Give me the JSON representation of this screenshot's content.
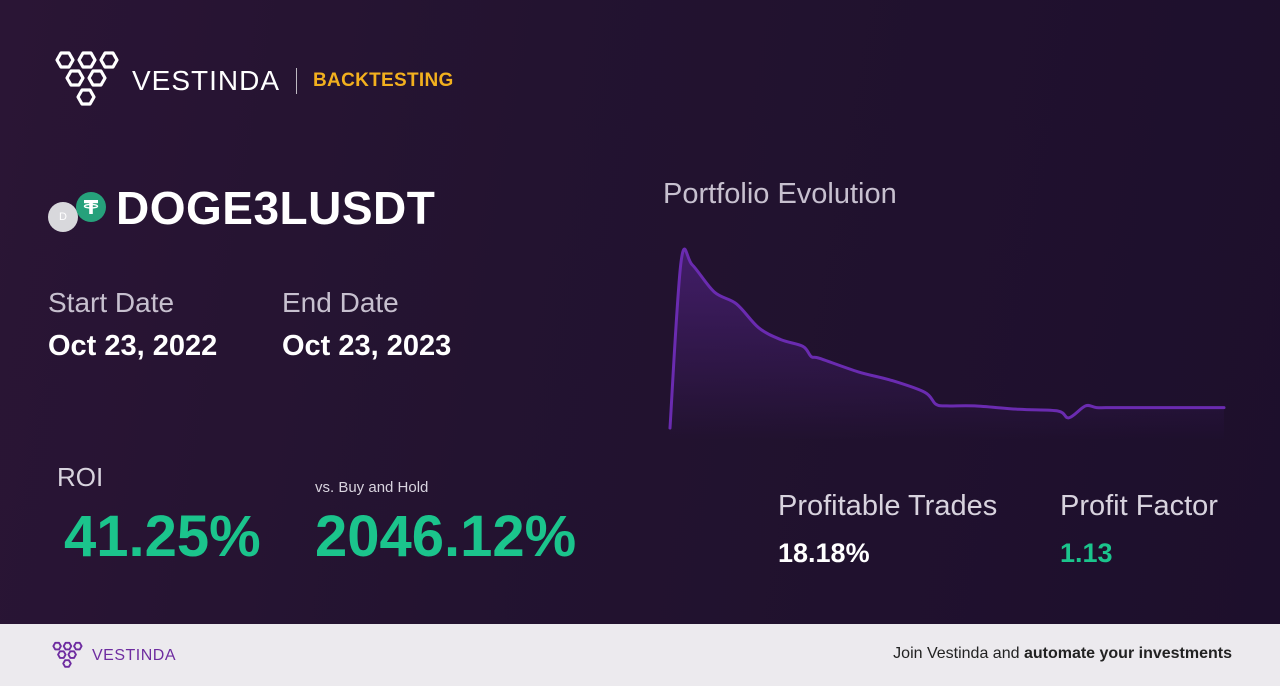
{
  "header": {
    "brand": "VESTINDA",
    "section": "BACKTESTING",
    "logo_icon": "hexagon-cluster-logo-icon"
  },
  "pair": {
    "symbol": "DOGE3LUSDT",
    "base_icon_letter": "D",
    "base_icon": "doge-coin-icon",
    "quote_icon": "tether-icon"
  },
  "dates": {
    "start_label": "Start Date",
    "start_value": "Oct 23, 2022",
    "end_label": "End Date",
    "end_value": "Oct 23, 2023"
  },
  "metrics": {
    "roi_label": "ROI",
    "roi_value": "41.25%",
    "vs_label": "vs. Buy and Hold",
    "vs_value": "2046.12%",
    "profitable_trades_label": "Profitable Trades",
    "profitable_trades_value": "18.18%",
    "profit_factor_label": "Profit Factor",
    "profit_factor_value": "1.13"
  },
  "chart_title": "Portfolio Evolution",
  "chart_data": {
    "type": "area",
    "title": "Portfolio Evolution",
    "xlabel": "",
    "ylabel": "",
    "grid": false,
    "legend": "none",
    "line_color": "#6a2bb0",
    "x": [
      0,
      0.02,
      0.04,
      0.08,
      0.12,
      0.16,
      0.2,
      0.24,
      0.255,
      0.27,
      0.34,
      0.4,
      0.46,
      0.48,
      0.5,
      0.55,
      0.63,
      0.7,
      0.72,
      0.75,
      0.77,
      0.8,
      0.86,
      1.0
    ],
    "y": [
      0,
      0.98,
      0.96,
      0.8,
      0.73,
      0.59,
      0.52,
      0.48,
      0.42,
      0.41,
      0.33,
      0.28,
      0.21,
      0.14,
      0.13,
      0.13,
      0.11,
      0.1,
      0.06,
      0.13,
      0.12,
      0.12,
      0.12,
      0.12
    ]
  },
  "colors": {
    "accent": "#f2b01e",
    "positive": "#1bc48c",
    "brand_purple": "#6e2ca0",
    "background": "#231330"
  },
  "footer": {
    "brand": "VESTINDA",
    "cta_prefix": "Join Vestinda and ",
    "cta_bold": "automate your investments"
  }
}
